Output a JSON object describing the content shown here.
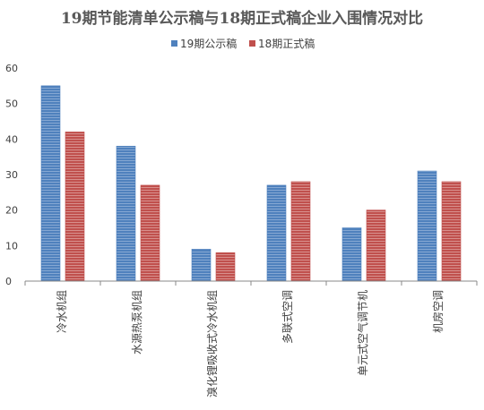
{
  "chart_data": {
    "type": "bar",
    "title": "19期节能清单公示稿与18期正式稿企业入围情况对比",
    "xlabel": "",
    "ylabel": "",
    "ylim": [
      0,
      60
    ],
    "yticks": [
      0,
      10,
      20,
      30,
      40,
      50,
      60
    ],
    "grid": false,
    "legend_position": "top",
    "categories": [
      "冷水机组",
      "水源热泵机组",
      "溴化锂吸收式冷水机组",
      "多联式空调",
      "单元式空气调节机",
      "机房空调"
    ],
    "series": [
      {
        "name": "19期公示稿",
        "color": "#4f81bd",
        "values": [
          55,
          38,
          9,
          27,
          15,
          31
        ]
      },
      {
        "name": "18期正式稿",
        "color": "#c0504d",
        "values": [
          42,
          27,
          8,
          28,
          20,
          28
        ]
      }
    ]
  }
}
